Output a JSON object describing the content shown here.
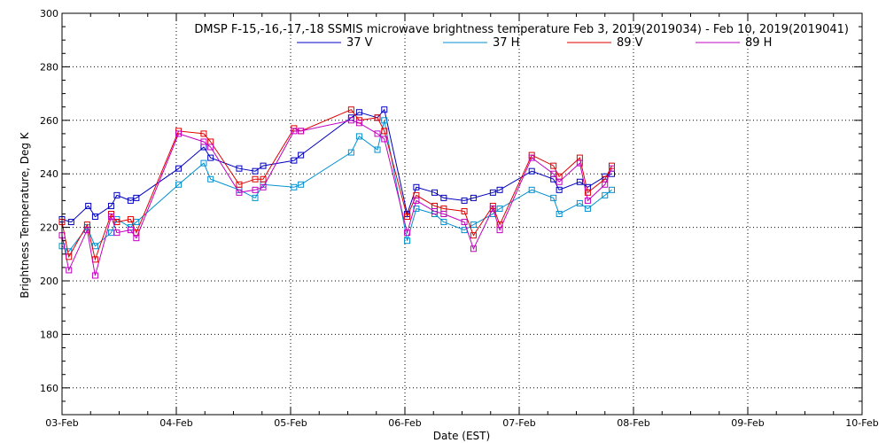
{
  "chart_data": {
    "type": "line",
    "title": "DMSP F-15,-16,-17,-18 SSMIS microwave brightness temperature Feb  3, 2019(2019034) - Feb 10, 2019(2019041)",
    "xlabel": "Date (EST)",
    "ylabel": "Brightness Temperature, Deg K",
    "xlim": [
      0,
      7
    ],
    "ylim": [
      150,
      300
    ],
    "grid": true,
    "legend_position": "top",
    "x_ticks": [
      {
        "value": 0,
        "label": "03-Feb"
      },
      {
        "value": 1,
        "label": "04-Feb"
      },
      {
        "value": 2,
        "label": "05-Feb"
      },
      {
        "value": 3,
        "label": "06-Feb"
      },
      {
        "value": 4,
        "label": "07-Feb"
      },
      {
        "value": 5,
        "label": "08-Feb"
      },
      {
        "value": 6,
        "label": "09-Feb"
      },
      {
        "value": 7,
        "label": "10-Feb"
      }
    ],
    "y_ticks": [
      {
        "value": 160,
        "label": "160"
      },
      {
        "value": 180,
        "label": "180"
      },
      {
        "value": 200,
        "label": "200"
      },
      {
        "value": 220,
        "label": "220"
      },
      {
        "value": 240,
        "label": "240"
      },
      {
        "value": 260,
        "label": "260"
      },
      {
        "value": 280,
        "label": "280"
      },
      {
        "value": 300,
        "label": "300"
      }
    ],
    "series": [
      {
        "name": "37 V",
        "color": "#0000c0",
        "x": [
          0.0,
          0.08,
          0.23,
          0.29,
          0.43,
          0.48,
          0.6,
          0.65,
          1.02,
          1.24,
          1.3,
          1.55,
          1.69,
          1.76,
          2.03,
          2.09,
          2.53,
          2.6,
          2.76,
          2.82,
          3.02,
          3.1,
          3.26,
          3.34,
          3.52,
          3.6,
          3.77,
          3.83,
          4.11,
          4.3,
          4.35,
          4.53,
          4.6,
          4.75,
          4.81
        ],
        "y": [
          223,
          222,
          228,
          224,
          228,
          232,
          230,
          231,
          242,
          250,
          246,
          242,
          241,
          243,
          245,
          247,
          261,
          263,
          261,
          264,
          225,
          235,
          233,
          231,
          230,
          231,
          233,
          234,
          241,
          238,
          234,
          237,
          235,
          239,
          240
        ]
      },
      {
        "name": "37 H",
        "color": "#0090d0",
        "x": [
          0.0,
          0.06,
          0.22,
          0.29,
          0.43,
          0.48,
          0.6,
          0.65,
          1.02,
          1.24,
          1.3,
          1.55,
          1.69,
          1.76,
          2.03,
          2.09,
          2.53,
          2.6,
          2.76,
          2.82,
          3.02,
          3.1,
          3.26,
          3.34,
          3.52,
          3.6,
          3.77,
          3.83,
          4.11,
          4.3,
          4.35,
          4.53,
          4.6,
          4.75,
          4.81
        ],
        "y": [
          213,
          211,
          220,
          213,
          218,
          223,
          220,
          222,
          236,
          244,
          238,
          234,
          231,
          236,
          235,
          236,
          248,
          254,
          249,
          260,
          215,
          227,
          225,
          222,
          219,
          221,
          225,
          227,
          234,
          231,
          225,
          229,
          227,
          232,
          234
        ]
      },
      {
        "name": "89 V",
        "color": "#e00000",
        "x": [
          0.0,
          0.06,
          0.22,
          0.29,
          0.43,
          0.48,
          0.6,
          0.65,
          1.02,
          1.24,
          1.3,
          1.55,
          1.69,
          1.76,
          2.03,
          2.09,
          2.53,
          2.6,
          2.76,
          2.82,
          3.02,
          3.1,
          3.26,
          3.34,
          3.52,
          3.6,
          3.77,
          3.83,
          4.11,
          4.3,
          4.35,
          4.53,
          4.6,
          4.75,
          4.81
        ],
        "y": [
          222,
          209,
          221,
          208,
          225,
          222,
          223,
          218,
          256,
          255,
          252,
          236,
          238,
          238,
          257,
          256,
          264,
          260,
          261,
          256,
          224,
          232,
          228,
          227,
          226,
          217,
          228,
          221,
          247,
          243,
          239,
          246,
          233,
          238,
          243
        ]
      },
      {
        "name": "89 H",
        "color": "#c000c0",
        "x": [
          0.0,
          0.06,
          0.22,
          0.29,
          0.43,
          0.48,
          0.6,
          0.65,
          1.02,
          1.24,
          1.3,
          1.55,
          1.69,
          1.76,
          2.03,
          2.09,
          2.53,
          2.6,
          2.76,
          2.82,
          3.02,
          3.1,
          3.26,
          3.34,
          3.52,
          3.6,
          3.77,
          3.83,
          4.11,
          4.3,
          4.35,
          4.53,
          4.6,
          4.75,
          4.81
        ],
        "y": [
          217,
          204,
          219,
          202,
          224,
          218,
          219,
          216,
          255,
          252,
          250,
          233,
          234,
          235,
          256,
          256,
          260,
          259,
          255,
          253,
          218,
          230,
          226,
          225,
          222,
          212,
          227,
          219,
          246,
          240,
          237,
          244,
          230,
          236,
          242
        ]
      }
    ]
  }
}
